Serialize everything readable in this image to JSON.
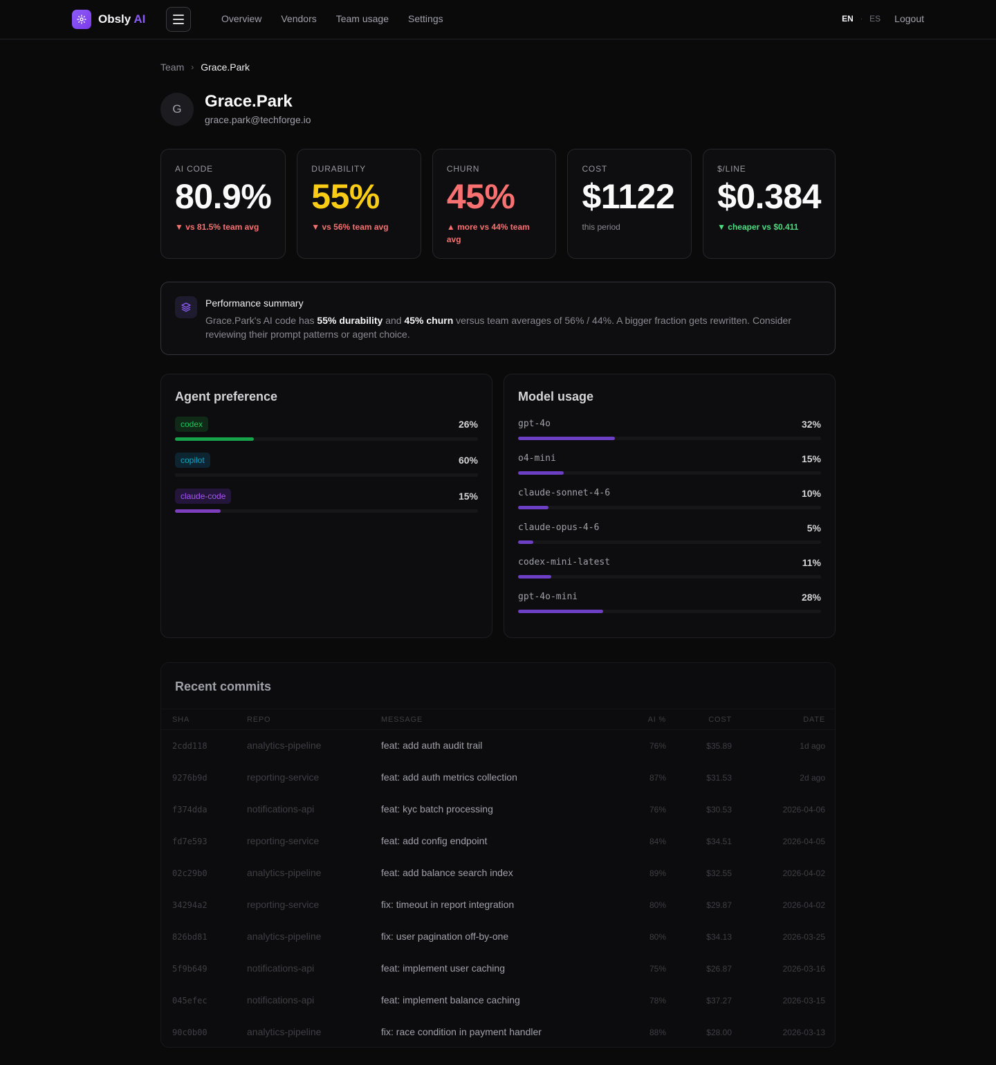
{
  "brand": {
    "name": "Obsly",
    "suffix": "AI"
  },
  "nav": {
    "links": [
      "Overview",
      "Vendors",
      "Team usage",
      "Settings"
    ],
    "lang_active": "EN",
    "lang_sep": "·",
    "lang_other": "ES",
    "logout": "Logout"
  },
  "breadcrumb": {
    "parent": "Team",
    "separator": "›",
    "current": "Grace.Park"
  },
  "profile": {
    "initial": "G",
    "name": "Grace.Park",
    "email": "grace.park@techforge.io"
  },
  "stats": [
    {
      "label": "AI CODE",
      "value": "80.9%",
      "sub": "▼ vs 81.5% team avg",
      "tone": "red"
    },
    {
      "label": "DURABILITY",
      "value": "55%",
      "sub": "▼ vs 56% team avg",
      "tone": "red",
      "value_color": "#facc15"
    },
    {
      "label": "CHURN",
      "value": "45%",
      "sub": "▲ more vs 44% team avg",
      "tone": "red",
      "value_color": "#f87171"
    },
    {
      "label": "COST",
      "value": "$1122",
      "sub": "this period",
      "tone": "muted"
    },
    {
      "label": "$/LINE",
      "value": "$0.384",
      "sub": "▼ cheaper vs $0.411",
      "tone": "green"
    }
  ],
  "summary": {
    "title": "Performance summary",
    "t1": "Grace.Park's AI code has ",
    "b1": "55% durability",
    "t2": " and ",
    "b2": "45% churn",
    "t3": " versus team averages of 56% / 44%. A bigger fraction gets rewritten. Consider reviewing their prompt patterns or agent choice."
  },
  "agent_preference": {
    "title": "Agent preference",
    "items": [
      {
        "name": "codex",
        "pct": "26%",
        "value": 0.26,
        "color": "#16a34a",
        "chip_bg": "#0f2a17",
        "chip_fg": "#22c55e"
      },
      {
        "name": "copilot",
        "pct": "60%",
        "value": 0.6,
        "color": "#0e7490",
        "chip_bg": "#0c2530",
        "chip_fg": "#0ea5c6"
      },
      {
        "name": "claude-code",
        "pct": "15%",
        "value": 0.15,
        "color": "#7e3fbf",
        "chip_bg": "#24163a",
        "chip_fg": "#a855f7"
      }
    ]
  },
  "model_usage": {
    "title": "Model usage",
    "bar_color": "#6d3fc4",
    "items": [
      {
        "name": "gpt-4o",
        "pct": "32%",
        "value": 0.32
      },
      {
        "name": "o4-mini",
        "pct": "15%",
        "value": 0.15
      },
      {
        "name": "claude-sonnet-4-6",
        "pct": "10%",
        "value": 0.1
      },
      {
        "name": "claude-opus-4-6",
        "pct": "5%",
        "value": 0.05
      },
      {
        "name": "codex-mini-latest",
        "pct": "11%",
        "value": 0.11
      },
      {
        "name": "gpt-4o-mini",
        "pct": "28%",
        "value": 0.28
      }
    ]
  },
  "commits": {
    "title": "Recent commits",
    "columns": [
      "SHA",
      "REPO",
      "MESSAGE",
      "AI %",
      "COST",
      "DATE"
    ],
    "rows": [
      {
        "sha": "2cdd118",
        "repo": "analytics-pipeline",
        "message": "feat: add auth audit trail",
        "ai": "76%",
        "cost": "$35.89",
        "date": "1d ago"
      },
      {
        "sha": "9276b9d",
        "repo": "reporting-service",
        "message": "feat: add auth metrics collection",
        "ai": "87%",
        "cost": "$31.53",
        "date": "2d ago"
      },
      {
        "sha": "f374dda",
        "repo": "notifications-api",
        "message": "feat: kyc batch processing",
        "ai": "76%",
        "cost": "$30.53",
        "date": "2026-04-06"
      },
      {
        "sha": "fd7e593",
        "repo": "reporting-service",
        "message": "feat: add config endpoint",
        "ai": "84%",
        "cost": "$34.51",
        "date": "2026-04-05"
      },
      {
        "sha": "02c29b0",
        "repo": "analytics-pipeline",
        "message": "feat: add balance search index",
        "ai": "89%",
        "cost": "$32.55",
        "date": "2026-04-02"
      },
      {
        "sha": "34294a2",
        "repo": "reporting-service",
        "message": "fix: timeout in report integration",
        "ai": "80%",
        "cost": "$29.87",
        "date": "2026-04-02"
      },
      {
        "sha": "826bd81",
        "repo": "analytics-pipeline",
        "message": "fix: user pagination off-by-one",
        "ai": "80%",
        "cost": "$34.13",
        "date": "2026-03-25"
      },
      {
        "sha": "5f9b649",
        "repo": "notifications-api",
        "message": "feat: implement user caching",
        "ai": "75%",
        "cost": "$26.87",
        "date": "2026-03-16"
      },
      {
        "sha": "045efec",
        "repo": "notifications-api",
        "message": "feat: implement balance caching",
        "ai": "78%",
        "cost": "$37.27",
        "date": "2026-03-15"
      },
      {
        "sha": "90c0b00",
        "repo": "analytics-pipeline",
        "message": "fix: race condition in payment handler",
        "ai": "88%",
        "cost": "$28.00",
        "date": "2026-03-13"
      }
    ]
  }
}
